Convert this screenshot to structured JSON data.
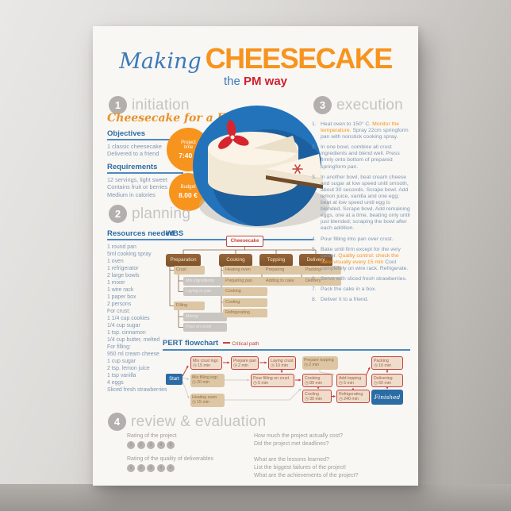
{
  "colors": {
    "accent_orange": "#f7941e",
    "title_blue": "#3c79b8",
    "pm_red": "#d02030",
    "heading_blue": "#2e6ca4",
    "critical_red": "#c5443e",
    "body_blue": "#7e97b3"
  },
  "poster": {
    "title": {
      "script": "Making",
      "main": "CHEESECAKE",
      "sub_the": "the",
      "sub_pm": "PM way"
    },
    "sections": {
      "initiation": {
        "num": "1",
        "title": "initiation",
        "subtitle": "Cheesecake for a Friend",
        "objectives": {
          "heading": "Objectives",
          "items": [
            "1 classic cheesecake",
            "Delivered to a friend"
          ]
        },
        "requirements": {
          "heading": "Requirements",
          "items": [
            "12 servings, light sweet",
            "Contains fruit or berries",
            "Medium in calories"
          ]
        },
        "badges": [
          {
            "label1": "Project",
            "label2": "time",
            "value": "7:40 h"
          },
          {
            "label1": "Budget",
            "label2": "",
            "value": "8.00 €"
          }
        ]
      },
      "planning": {
        "num": "2",
        "title": "planning",
        "resources": {
          "heading": "Resources needed",
          "items": [
            "1 round pan",
            "5ml cooking spray",
            "1 oven",
            "1 refrigerator",
            "2 large bowls",
            "1 mixer",
            "1 wire rack",
            "1 paper box",
            "2 persons",
            "For crust:",
            "1 1/4 cup cookies",
            "1/4 cup sugar",
            "1 tsp. cinnamon",
            "1/4 cup butter, melted",
            "For filling:",
            "950 ml cream cheese",
            "1 cup sugar",
            "2 tsp. lemon juice",
            "1 tsp vanilla",
            "4 eggs",
            "Sliced fresh strawberries"
          ]
        },
        "wbs": {
          "heading": "WBS",
          "nodes": [
            {
              "id": "root",
              "label": "Cheesecake",
              "style": "root"
            },
            {
              "id": "preparation",
              "label": "Preparation",
              "style": "branch"
            },
            {
              "id": "cooking",
              "label": "Cooking",
              "style": "branch"
            },
            {
              "id": "topping",
              "label": "Topping",
              "style": "branch"
            },
            {
              "id": "delivery",
              "label": "Delivery",
              "style": "branch"
            },
            {
              "id": "crust",
              "label": "Crust",
              "style": "tan"
            },
            {
              "id": "mix-ingredients",
              "label": "Mix ingredients",
              "style": "gray"
            },
            {
              "id": "laying-in-pan",
              "label": "Laying in pan",
              "style": "gray"
            },
            {
              "id": "filling",
              "label": "Filling",
              "style": "tan"
            },
            {
              "id": "mixing",
              "label": "Mixing",
              "style": "gray"
            },
            {
              "id": "pour-on-crust",
              "label": "Pour on crust",
              "style": "gray"
            },
            {
              "id": "heating-oven",
              "label": "Heating oven",
              "style": "tan"
            },
            {
              "id": "preparing-pan",
              "label": "Preparing pan",
              "style": "tan"
            },
            {
              "id": "cooking-task",
              "label": "Cooking",
              "style": "tan"
            },
            {
              "id": "cooling",
              "label": "Cooling",
              "style": "tan"
            },
            {
              "id": "refrigerating",
              "label": "Refrigerating",
              "style": "tan"
            },
            {
              "id": "preparing",
              "label": "Preparing",
              "style": "tan"
            },
            {
              "id": "adding-to-cake",
              "label": "Adding to cake",
              "style": "tan"
            },
            {
              "id": "packing",
              "label": "Packing",
              "style": "tan"
            },
            {
              "id": "delivery-task",
              "label": "Delivery",
              "style": "tan"
            }
          ]
        },
        "pert": {
          "heading": "PERT flowchart",
          "legend": "Critical path",
          "nodes": [
            {
              "id": "start",
              "label": "Start",
              "type": "terminal"
            },
            {
              "id": "mix-crust",
              "label": "Mix crust ingr.",
              "duration": "15 min",
              "critical": true
            },
            {
              "id": "prepare-pan",
              "label": "Prepare pan",
              "duration": "2 min",
              "critical": true
            },
            {
              "id": "laying-crust",
              "label": "Laying crust",
              "duration": "10 min",
              "critical": true
            },
            {
              "id": "prepare-topping",
              "label": "Prepare topping",
              "duration": "2 min",
              "critical": false
            },
            {
              "id": "packing",
              "label": "Packing",
              "duration": "10 min",
              "critical": true
            },
            {
              "id": "mix-filling",
              "label": "Mix filling ingr.",
              "duration": "20 min",
              "critical": false
            },
            {
              "id": "pour-filling",
              "label": "Pour filling on crust",
              "duration": "5 min",
              "critical": true
            },
            {
              "id": "cooking",
              "label": "Cooking",
              "duration": "80 min",
              "critical": true
            },
            {
              "id": "add-topping",
              "label": "Add topping",
              "duration": "5 min",
              "critical": true
            },
            {
              "id": "delivering",
              "label": "Delivering",
              "duration": "60 min",
              "critical": true
            },
            {
              "id": "heating-oven",
              "label": "Heating oven",
              "duration": "15 min",
              "critical": false
            },
            {
              "id": "cooling",
              "label": "Cooling",
              "duration": "30 min",
              "critical": true
            },
            {
              "id": "refrigerating",
              "label": "Refrigerating",
              "duration": "240 min",
              "critical": true
            },
            {
              "id": "finished",
              "label": "Finished",
              "type": "finish"
            }
          ]
        }
      },
      "execution": {
        "num": "3",
        "title": "execution",
        "steps": [
          {
            "num": "1.",
            "parts": [
              {
                "t": "Heat oven to 150° C."
              },
              {
                "t": "Monitor the temperature.",
                "hl": true
              },
              {
                "t": "Spray 22cm springform pan with nonstick cooking spray."
              }
            ]
          },
          {
            "num": "2.",
            "parts": [
              {
                "t": "In one bowl, combine all crust ingredients and blend well. Press firmly onto bottom of prepared springform pan."
              }
            ]
          },
          {
            "num": "3.",
            "parts": [
              {
                "t": "In another bowl, beat cream cheese and sugar at low speed until smooth, about 30 seconds. Scrape bowl. Add lemon juice, vanilla and one egg; beat at low speed until egg is blended. Scrape bowl. Add remaining eggs, one at a time, beating only until just blended; scraping the bowl after each addition."
              }
            ]
          },
          {
            "num": "4.",
            "parts": [
              {
                "t": "Pour filling into pan over crust."
              }
            ]
          },
          {
            "num": "5.",
            "parts": [
              {
                "t": "Bake until firm except for the very center."
              },
              {
                "t": "Quality control: check the cake visually every 15 min",
                "hl": true
              },
              {
                "t": "Cool completely on wire rack. Refrigerate."
              }
            ]
          },
          {
            "num": "6.",
            "parts": [
              {
                "t": "Serve with sliced fresh strawberries."
              }
            ]
          },
          {
            "num": "7.",
            "parts": [
              {
                "t": "Pack the cake in a box."
              }
            ]
          },
          {
            "num": "8.",
            "parts": [
              {
                "t": "Deliver it to a friend."
              }
            ]
          }
        ]
      },
      "review": {
        "num": "4",
        "title": "review & evaluation",
        "ratings": [
          {
            "label": "Rating of the project",
            "scale": [
              "1",
              "2",
              "3",
              "4",
              "5"
            ]
          },
          {
            "label": "Rating of the quality of deliverables",
            "scale": [
              "1",
              "2",
              "3",
              "4",
              "5"
            ]
          }
        ],
        "question_groups": [
          [
            "How much the project actually cost?",
            "Did the project met deadlines?"
          ],
          [
            "What are the lessons learned?",
            "List the biggest failures of the project!",
            "What are the achievements of the project?"
          ]
        ]
      }
    }
  }
}
